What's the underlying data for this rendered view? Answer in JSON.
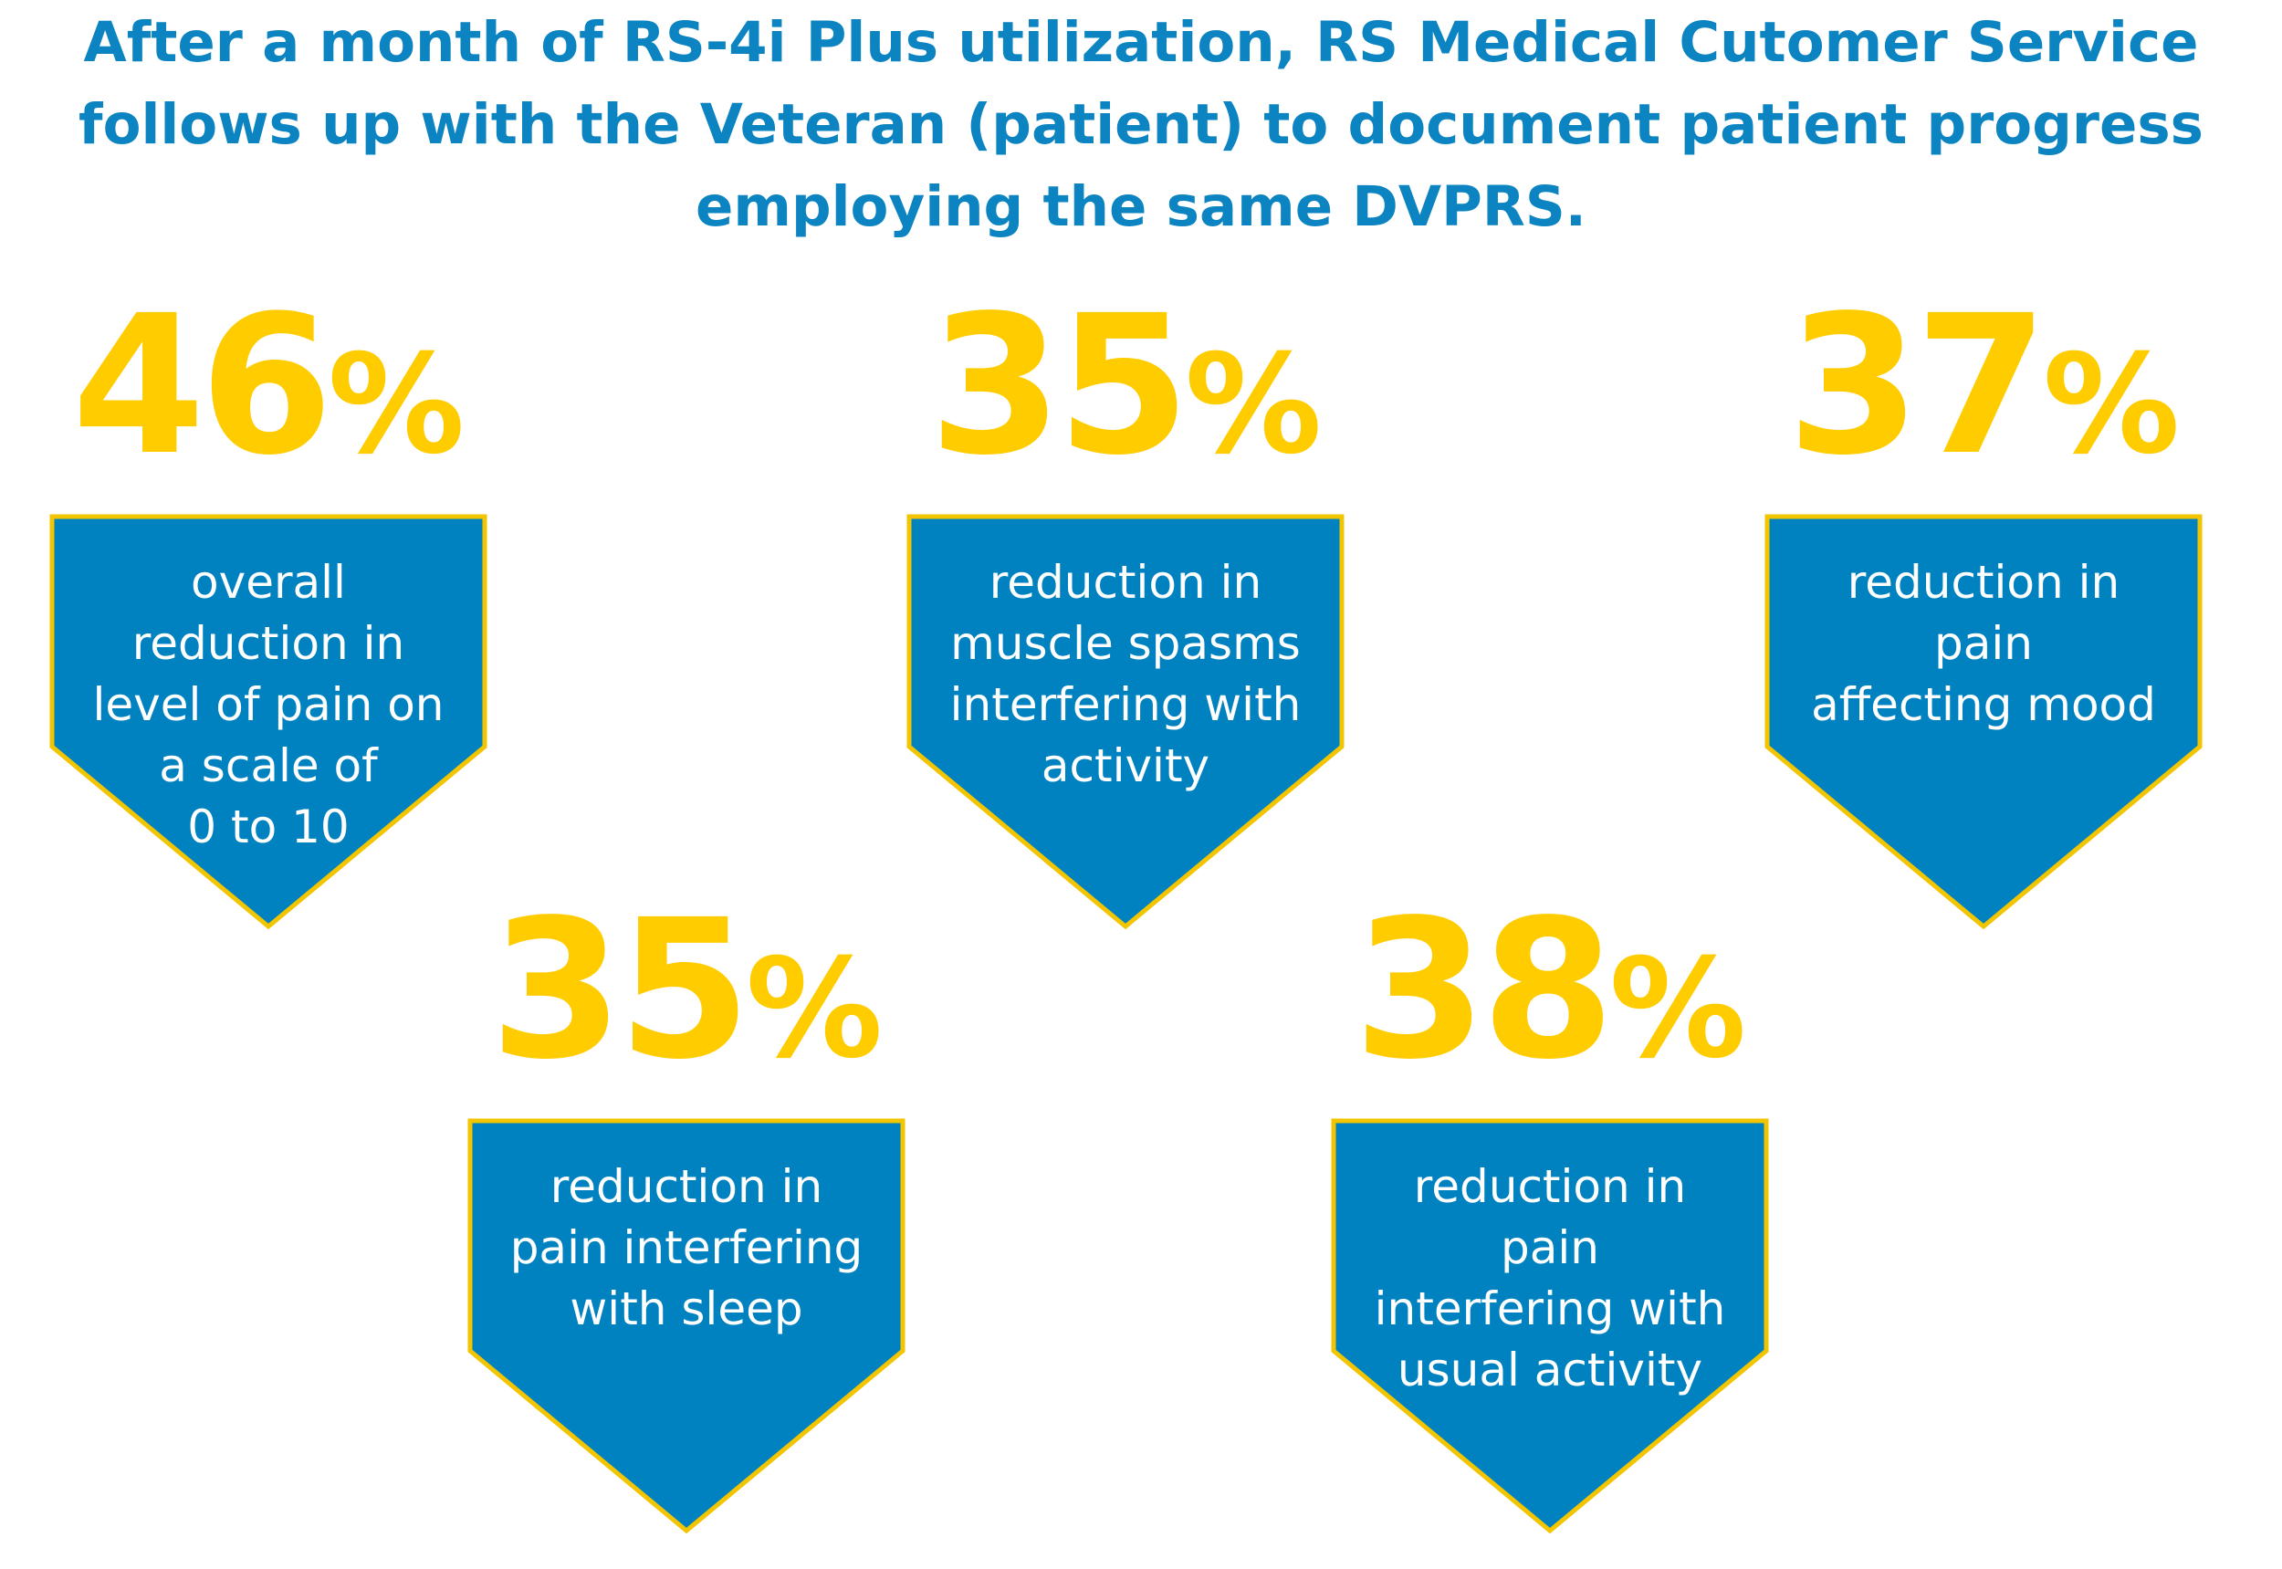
{
  "headline": {
    "line1": "After a month of RS-4i Plus utilization, RS Medical Cutomer Service",
    "line2": "follows up with the Veteran (patient) to document patient progress",
    "line3": "employing the same DVPRS."
  },
  "colors": {
    "headline": "#0b84c1",
    "percent": "#ffcc00",
    "badge_fill": "#0082c0",
    "badge_border": "#f2c500",
    "badge_text": "#ffffff"
  },
  "stats": [
    {
      "value": "46",
      "sign": "%",
      "label_lines": [
        "overall",
        "reduction in",
        "level of pain on",
        "a scale of",
        "0 to 10"
      ]
    },
    {
      "value": "35",
      "sign": "%",
      "label_lines": [
        "reduction in",
        "muscle spasms",
        "interfering with",
        "activity"
      ]
    },
    {
      "value": "37",
      "sign": "%",
      "label_lines": [
        "reduction in pain",
        "affecting mood"
      ]
    },
    {
      "value": "35",
      "sign": "%",
      "label_lines": [
        "reduction in",
        "pain interfering",
        "with sleep"
      ]
    },
    {
      "value": "38",
      "sign": "%",
      "label_lines": [
        "reduction in pain",
        "interfering with",
        "usual activity"
      ]
    }
  ]
}
